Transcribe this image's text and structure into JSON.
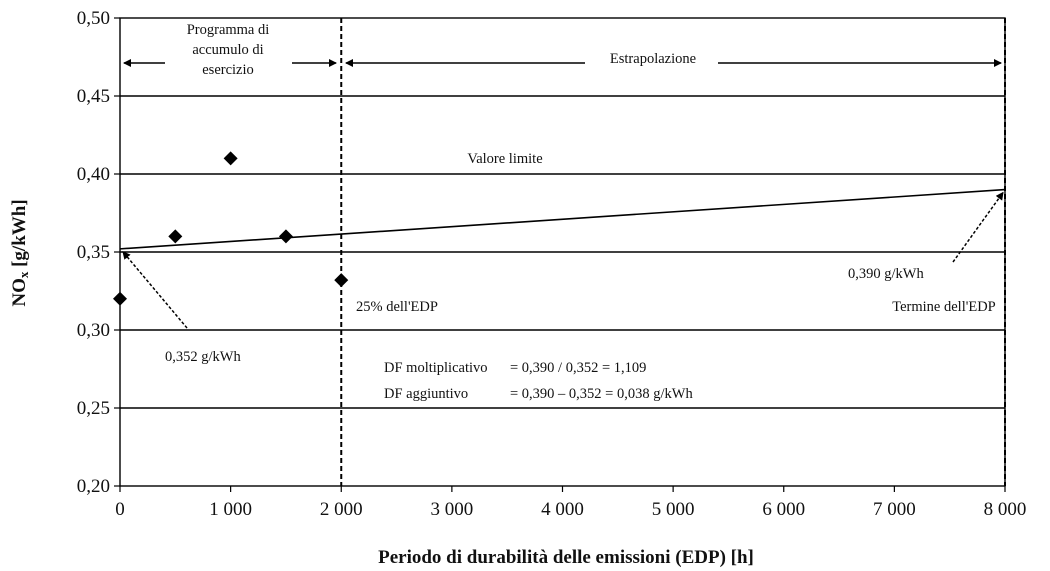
{
  "chart_data": {
    "type": "scatter",
    "title": "",
    "xlabel": "Periodo di durabilità delle emissioni (EDP) [h]",
    "ylabel_main": "NO",
    "ylabel_sub": "x",
    "ylabel_unit": " [g/kWh]",
    "xlim": [
      0,
      8000
    ],
    "ylim": [
      0.2,
      0.5
    ],
    "x_ticks": [
      0,
      1000,
      2000,
      3000,
      4000,
      5000,
      6000,
      7000,
      8000
    ],
    "x_tick_labels": [
      "0",
      "1 000",
      "2 000",
      "3 000",
      "4 000",
      "5 000",
      "6 000",
      "7 000",
      "8 000"
    ],
    "y_ticks": [
      0.2,
      0.25,
      0.3,
      0.35,
      0.4,
      0.45,
      0.5
    ],
    "y_tick_labels": [
      "0,20",
      "0,25",
      "0,30",
      "0,35",
      "0,40",
      "0,45",
      "0,50"
    ],
    "grid": "horizontal",
    "points": [
      {
        "x": 0,
        "y": 0.32
      },
      {
        "x": 500,
        "y": 0.36
      },
      {
        "x": 1000,
        "y": 0.41
      },
      {
        "x": 1500,
        "y": 0.36
      },
      {
        "x": 2000,
        "y": 0.332
      }
    ],
    "regression_line": {
      "x": [
        0,
        8000
      ],
      "y": [
        0.352,
        0.39
      ]
    },
    "limit_value": 0.4,
    "vertical_markers": [
      2000,
      8000
    ],
    "annotations": {
      "service_accumulation": [
        "Programma di",
        "accumulo di",
        "esercizio"
      ],
      "extrapolation": "Estrapolazione",
      "limit_label": "Valore limite",
      "edp_25": "25% dell'EDP",
      "edp_end": "Termine dell'EDP",
      "value_start": "0,352 g/kWh",
      "value_end": "0,390 g/kWh",
      "df_mult_label": "DF moltiplicativo",
      "df_mult_formula": "= 0,390 / 0,352 = 1,109",
      "df_add_label": "DF aggiuntivo",
      "df_add_formula": "= 0,390 – 0,352 = 0,038 g/kWh"
    }
  }
}
